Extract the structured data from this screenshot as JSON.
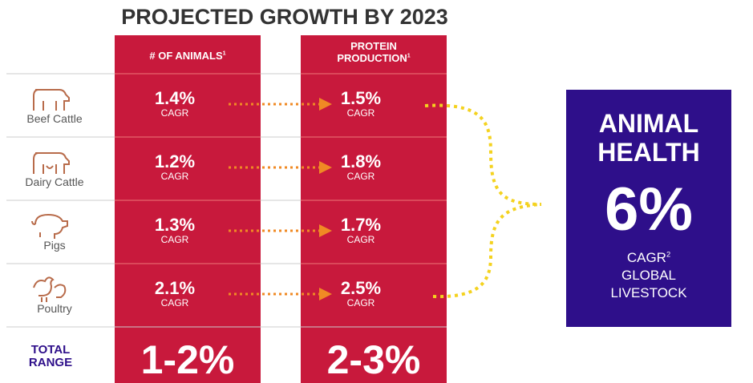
{
  "title": "PROJECTED GROWTH BY 2023",
  "columns": [
    {
      "lines": [
        "# OF ANIMALS"
      ],
      "note": "1"
    },
    {
      "lines": [
        "PROTEIN",
        "PRODUCTION"
      ],
      "note": "1"
    }
  ],
  "rows": [
    {
      "label": "Beef Cattle",
      "animals": "1.4%",
      "animals_unit": "CAGR",
      "protein": "1.5%",
      "protein_unit": "CAGR"
    },
    {
      "label": "Dairy Cattle",
      "animals": "1.2%",
      "animals_unit": "CAGR",
      "protein": "1.8%",
      "protein_unit": "CAGR"
    },
    {
      "label": "Pigs",
      "animals": "1.3%",
      "animals_unit": "CAGR",
      "protein": "1.7%",
      "protein_unit": "CAGR"
    },
    {
      "label": "Poultry",
      "animals": "2.1%",
      "animals_unit": "CAGR",
      "protein": "2.5%",
      "protein_unit": "CAGR"
    }
  ],
  "total": {
    "lines": [
      "TOTAL",
      "RANGE"
    ],
    "animals": "1-2%",
    "protein": "2-3%"
  },
  "callout": {
    "heading": [
      "ANIMAL",
      "HEALTH"
    ],
    "value": "6%",
    "unit": "CAGR",
    "note": "2",
    "lines": [
      "GLOBAL",
      "LIVESTOCK"
    ]
  }
}
